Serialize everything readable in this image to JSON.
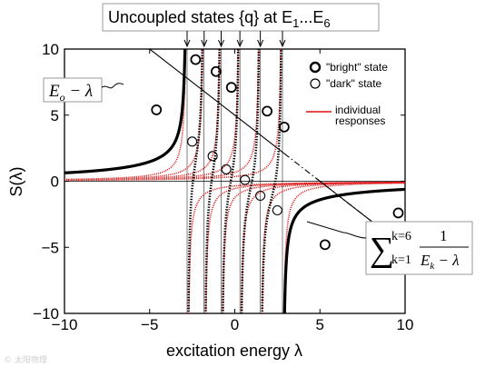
{
  "chart_data": {
    "type": "line",
    "title": "Uncoupled states {q} at E1...E6",
    "title_main": "Uncoupled states {q} at E",
    "title_sub1": "1",
    "title_mid": "...E",
    "title_sub6": "6",
    "xlabel": "excitation energy λ",
    "ylabel": "S(λ)",
    "xlim": [
      -10,
      10
    ],
    "ylim": [
      -10,
      10
    ],
    "xticks": [
      -10,
      -5,
      0,
      5,
      10
    ],
    "yticks": [
      -10,
      -5,
      0,
      5,
      10
    ],
    "xtick_labels": [
      "−10",
      "−5",
      "0",
      "5",
      "10"
    ],
    "ytick_labels": [
      "−10",
      "−5",
      "0",
      "5",
      "10"
    ],
    "grid": false,
    "legend_position": "top-right",
    "E0": 5,
    "uncoupled_energies": [
      -2.8,
      -1.8,
      -0.8,
      0.3,
      1.5,
      2.8
    ],
    "bright_states": [
      {
        "x": -4.6,
        "y": 5.4
      },
      {
        "x": -2.3,
        "y": 9.2
      },
      {
        "x": -1.1,
        "y": 8.3
      },
      {
        "x": -0.2,
        "y": 7.1
      },
      {
        "x": 1.9,
        "y": 5.3
      },
      {
        "x": 2.9,
        "y": 4.1
      },
      {
        "x": 5.3,
        "y": -4.8
      },
      {
        "x": 9.6,
        "y": -2.4
      }
    ],
    "dark_states": [
      {
        "x": -2.5,
        "y": 3.0
      },
      {
        "x": -1.3,
        "y": 1.9
      },
      {
        "x": -0.5,
        "y": 0.9
      },
      {
        "x": 0.6,
        "y": 0.1
      },
      {
        "x": 1.5,
        "y": -1.1
      },
      {
        "x": 2.5,
        "y": -2.2
      }
    ],
    "series": [
      {
        "name": "\"bright\" state",
        "color": "#000000",
        "marker": "circle-bold"
      },
      {
        "name": "\"dark\" state",
        "color": "#000000",
        "marker": "circle-thin"
      },
      {
        "name": "individual responses",
        "color": "#e01010",
        "marker": "line"
      }
    ],
    "annotations": {
      "line_label": "E_o − λ",
      "line_label_base": "E",
      "line_label_sub": "o",
      "line_label_rest": " − λ",
      "sum_upper": "k=6",
      "sum_lower": "k=1",
      "sum_numerator": "1",
      "sum_denominator": "E",
      "sum_denominator_sub": "k",
      "sum_denominator_rest": " − λ"
    }
  },
  "legend": {
    "bright_label": "\"bright\" state",
    "dark_label": "\"dark\" state",
    "individual_line1": "individual",
    "individual_line2": "responses"
  },
  "watermark": "© 太阳物理"
}
